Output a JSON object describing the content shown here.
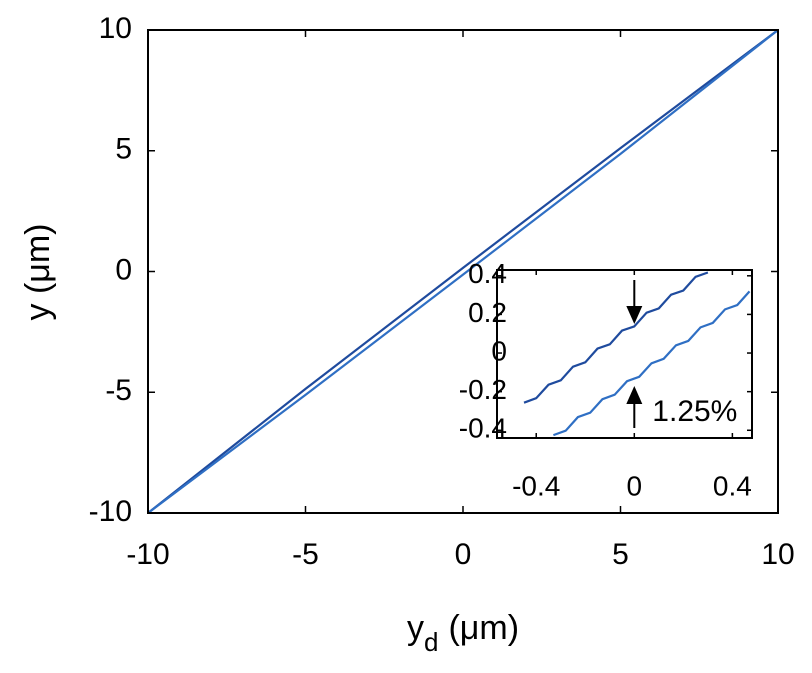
{
  "chart_data": [
    {
      "type": "line",
      "xlabel": {
        "base": "y",
        "sub": "d",
        "unit": "(μm)"
      },
      "ylabel": "y (μm)",
      "xlim": [
        -10,
        10
      ],
      "ylim": [
        -10,
        10
      ],
      "xticks": [
        -10,
        -5,
        0,
        5,
        10
      ],
      "yticks": [
        -10,
        -5,
        0,
        5,
        10
      ],
      "series": [
        {
          "color": "#1f4b9e",
          "x": [
            -10,
            -5,
            0,
            5,
            10
          ],
          "values": [
            -10,
            -4.86,
            0.15,
            5.11,
            10
          ]
        },
        {
          "color": "#2f6fc4",
          "x": [
            -10,
            -5,
            0,
            5,
            10
          ],
          "values": [
            -10,
            -5.11,
            -0.13,
            4.87,
            10
          ]
        }
      ]
    },
    {
      "type": "line",
      "xlim": [
        -0.56,
        0.48
      ],
      "ylim": [
        -0.44,
        0.43
      ],
      "xticks": [
        -0.4,
        0,
        0.4
      ],
      "yticks": [
        -0.4,
        -0.2,
        0,
        0.2,
        0.4
      ],
      "annotation": "1.25%",
      "series": [
        {
          "color": "#1f4b9e",
          "x": [
            -0.45,
            -0.4,
            -0.35,
            -0.3,
            -0.25,
            -0.2,
            -0.15,
            -0.1,
            -0.05,
            0,
            0.05,
            0.1,
            0.15,
            0.2,
            0.25,
            0.3
          ],
          "values": [
            -0.257,
            -0.234,
            -0.164,
            -0.141,
            -0.071,
            -0.048,
            0.023,
            0.045,
            0.116,
            0.138,
            0.209,
            0.231,
            0.302,
            0.324,
            0.395,
            0.417
          ]
        },
        {
          "color": "#2f6fc4",
          "x": [
            -0.33,
            -0.28,
            -0.23,
            -0.18,
            -0.13,
            -0.08,
            -0.03,
            0.02,
            0.07,
            0.12,
            0.17,
            0.22,
            0.27,
            0.32,
            0.37,
            0.42,
            0.47
          ],
          "values": [
            -0.425,
            -0.402,
            -0.332,
            -0.309,
            -0.239,
            -0.216,
            -0.146,
            -0.123,
            -0.053,
            -0.03,
            0.04,
            0.063,
            0.133,
            0.156,
            0.226,
            0.249,
            0.319
          ]
        }
      ]
    }
  ]
}
